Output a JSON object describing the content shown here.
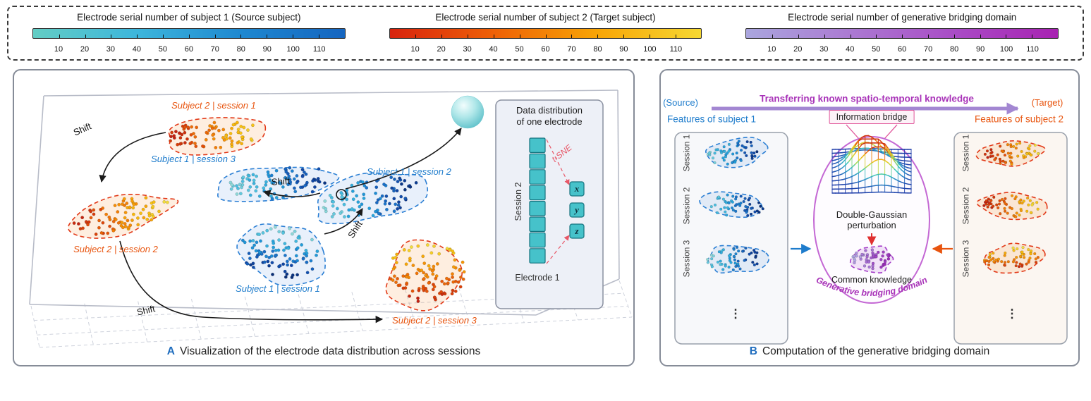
{
  "legend": {
    "bars": [
      {
        "title": "Electrode serial number of subject 1 (Source subject)",
        "ticks": [
          10,
          20,
          30,
          40,
          50,
          60,
          70,
          80,
          90,
          100,
          110
        ],
        "gradient": [
          "#63cdc4",
          "#3db6dc",
          "#1e88d0",
          "#1565c0"
        ]
      },
      {
        "title": "Electrode serial number of subject 2 (Target subject)",
        "ticks": [
          10,
          20,
          30,
          40,
          50,
          60,
          70,
          80,
          90,
          100,
          110
        ],
        "gradient": [
          "#d8230e",
          "#ee6006",
          "#f8a506",
          "#f6d832"
        ]
      },
      {
        "title": "Electrode serial number of generative bridging domain",
        "ticks": [
          10,
          20,
          30,
          40,
          50,
          60,
          70,
          80,
          90,
          100,
          110
        ],
        "gradient": [
          "#aaa6de",
          "#ab7ad2",
          "#a94cc6",
          "#a822b2"
        ]
      }
    ]
  },
  "panelA": {
    "labels": {
      "s2s1": "Subject 2 | session 1",
      "s1s3": "Subject 1 | session 3",
      "s1s2": "Subject 1 | session 2",
      "s2s2": "Subject 2 | session 2",
      "s1s1": "Subject 1 | session 1",
      "s2s3": "Subject 2 | session 3",
      "shift": "Shift"
    },
    "inset": {
      "title1": "Data distribution",
      "title2": "of one electrode",
      "session": "Session 2",
      "electrode": "Electrode 1",
      "tsne": "t-SNE",
      "x": "x",
      "y": "y",
      "z": "z"
    },
    "caption_letter": "A",
    "caption": "Visualization of the electrode data distribution across sessions"
  },
  "panelB": {
    "source": "(Source)",
    "target": "(Target)",
    "transfer": "Transferring known spatio-temporal knowledge",
    "features1": "Features of subject 1",
    "bridge": "Information bridge",
    "features2": "Features of subject 2",
    "sessions": [
      "Session 1",
      "Session 2",
      "Session 3"
    ],
    "ellipsis": "⋮",
    "gauss1": "Double-Gaussian",
    "gauss2": "perturbation",
    "common": "Common knowledge",
    "domain": "Generative bridging domain",
    "caption_letter": "B",
    "caption": "Computation of the generative bridging domain"
  },
  "colors": {
    "subject1": "#1e7ccc",
    "subject2": "#e8540e",
    "bridge": "#a832b8",
    "caption": "#1f6dbe",
    "ramp_subject1": [
      "#8fd8d8",
      "#4cc0e0",
      "#22a0dc",
      "#1b74cc",
      "#1048a8",
      "#0a3078"
    ],
    "ramp_subject2": [
      "#c22010",
      "#e44e08",
      "#f58406",
      "#f8b90a",
      "#f4dc3a"
    ],
    "ramp_bridge": [
      "#b4aee4",
      "#a87ad6",
      "#a14cc8",
      "#9a28b8"
    ],
    "ramp_surface": [
      "#1c3aa8",
      "#2a88c8",
      "#3cc8bc",
      "#b4dc4c",
      "#f2c414",
      "#ea6c10",
      "#cc2808"
    ]
  }
}
